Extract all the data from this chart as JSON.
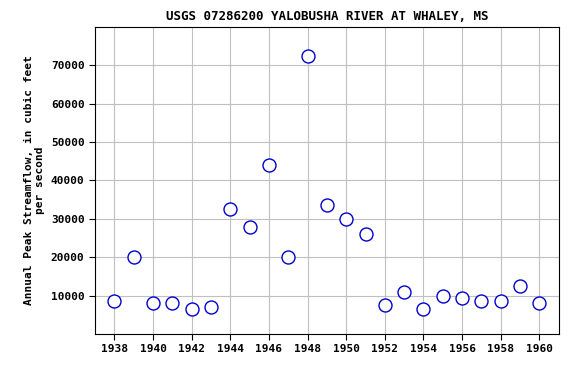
{
  "title": "USGS 07286200 YALOBUSHA RIVER AT WHALEY, MS",
  "ylabel": "Annual Peak Streamflow, in cubic feet\nper second",
  "years": [
    1938,
    1939,
    1940,
    1941,
    1942,
    1943,
    1944,
    1945,
    1946,
    1947,
    1948,
    1949,
    1950,
    1951,
    1952,
    1953,
    1954,
    1955,
    1956,
    1957,
    1958,
    1959,
    1960
  ],
  "flows": [
    8500,
    20000,
    8200,
    8000,
    6500,
    7000,
    32500,
    28000,
    44000,
    20000,
    72500,
    33500,
    30000,
    26000,
    7500,
    11000,
    6500,
    10000,
    9500,
    8500,
    8500,
    12500,
    8000
  ],
  "xlim": [
    1937,
    1961
  ],
  "ylim": [
    0,
    80000
  ],
  "xticks": [
    1938,
    1940,
    1942,
    1944,
    1946,
    1948,
    1950,
    1952,
    1954,
    1956,
    1958,
    1960
  ],
  "yticks": [
    10000,
    20000,
    30000,
    40000,
    50000,
    60000,
    70000
  ],
  "marker_color": "#0000cc",
  "marker_size": 5,
  "grid_color": "#c0c0c0",
  "bg_color": "#ffffff",
  "title_fontsize": 9,
  "label_fontsize": 8,
  "tick_fontsize": 8
}
